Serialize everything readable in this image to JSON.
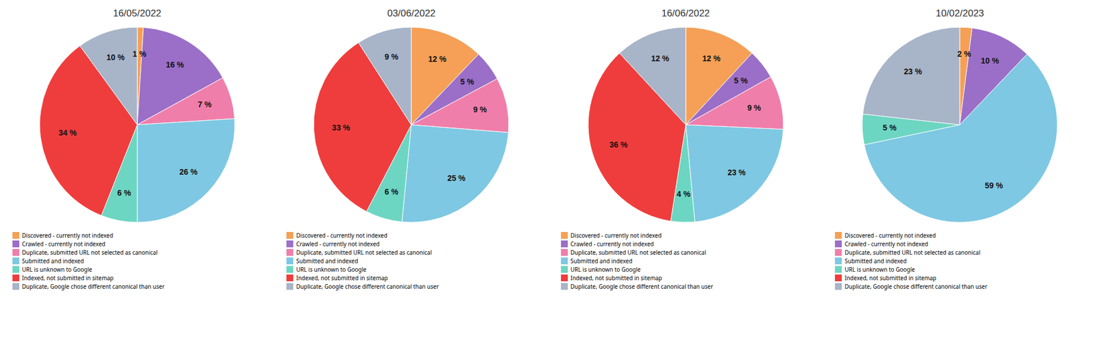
{
  "chart_data": [
    {
      "type": "pie",
      "title": "16/05/2022",
      "categories": [
        "Discovered - currently not indexed",
        "Crawled - currently not indexed",
        "Duplicate, submitted URL not selected as canonical",
        "Submitted and indexed",
        "URL is unknown to Google",
        "Indexed, not submitted in sitemap",
        "Duplicate, Google chose different canonical than user"
      ],
      "values": [
        1,
        16,
        7,
        26,
        6,
        34,
        10
      ],
      "value_labels": [
        "1 %",
        "16 %",
        "7 %",
        "26 %",
        "6 %",
        "34 %",
        "10 %"
      ],
      "colors": [
        "#F5A056",
        "#9B6FC8",
        "#F07EAA",
        "#7EC8E3",
        "#6DD6C2",
        "#EF3D3D",
        "#A8B4C8"
      ],
      "data_labels": true,
      "legend": "bottom"
    },
    {
      "type": "pie",
      "title": "03/06/2022",
      "categories": [
        "Discovered - currently not indexed",
        "Crawled - currently not indexed",
        "Duplicate, submitted URL not selected as canonical",
        "Submitted and indexed",
        "URL is unknown to Google",
        "Indexed, not submitted in sitemap",
        "Duplicate, Google chose different canonical than user"
      ],
      "values": [
        12,
        5,
        9,
        25,
        6,
        33,
        9
      ],
      "value_labels": [
        "12 %",
        "5 %",
        "9 %",
        "25 %",
        "6 %",
        "33 %",
        "9 %"
      ],
      "colors": [
        "#F5A056",
        "#9B6FC8",
        "#F07EAA",
        "#7EC8E3",
        "#6DD6C2",
        "#EF3D3D",
        "#A8B4C8"
      ],
      "data_labels": true,
      "legend": "bottom"
    },
    {
      "type": "pie",
      "title": "16/06/2022",
      "categories": [
        "Discovered - currently not indexed",
        "Crawled - currently not indexed",
        "Duplicate, submitted URL not selected as canonical",
        "Submitted and indexed",
        "URL is unknown to Google",
        "Indexed, not submitted in sitemap",
        "Duplicate, Google chose different canonical than user"
      ],
      "values": [
        12,
        5,
        9,
        23,
        4,
        36,
        12
      ],
      "value_labels": [
        "12 %",
        "5 %",
        "9 %",
        "23 %",
        "4 %",
        "36 %",
        "12 %"
      ],
      "colors": [
        "#F5A056",
        "#9B6FC8",
        "#F07EAA",
        "#7EC8E3",
        "#6DD6C2",
        "#EF3D3D",
        "#A8B4C8"
      ],
      "data_labels": true,
      "legend": "bottom"
    },
    {
      "type": "pie",
      "title": "10/02/2023",
      "categories": [
        "Discovered - currently not indexed",
        "Crawled - currently not indexed",
        "Duplicate, submitted URL not selected as canonical",
        "Submitted and indexed",
        "URL is unknown to Google",
        "Indexed, not submitted in sitemap",
        "Duplicate, Google chose different canonical than user"
      ],
      "values": [
        2,
        10,
        0,
        59,
        5,
        0,
        23
      ],
      "value_labels": [
        "2 %",
        "10 %",
        null,
        "59 %",
        "5 %",
        null,
        "23 %"
      ],
      "colors": [
        "#F5A056",
        "#9B6FC8",
        "#F07EAA",
        "#7EC8E3",
        "#6DD6C2",
        "#EF3D3D",
        "#A8B4C8"
      ],
      "data_labels": true,
      "legend": "bottom"
    }
  ]
}
